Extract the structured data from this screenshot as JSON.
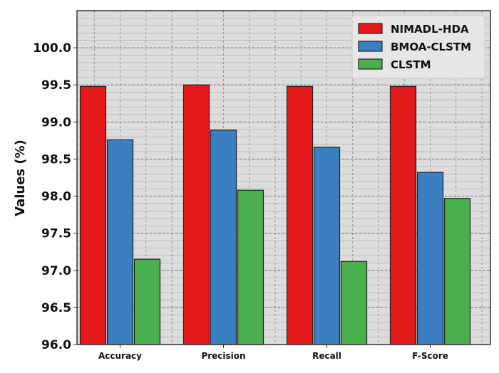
{
  "chart_data": {
    "type": "bar",
    "title": "",
    "xlabel": "",
    "ylabel": "Values (%)",
    "categories": [
      "Accuracy",
      "Precision",
      "Recall",
      "F-Score"
    ],
    "series": [
      {
        "name": "NIMADL-HDA",
        "color": "#e3191c",
        "values": [
          99.48,
          99.5,
          99.48,
          99.48
        ]
      },
      {
        "name": "BMOA-CLSTM",
        "color": "#3a7fbf",
        "values": [
          98.76,
          98.89,
          98.66,
          98.32
        ]
      },
      {
        "name": "CLSTM",
        "color": "#4caf4f",
        "values": [
          97.15,
          98.08,
          97.12,
          97.97
        ]
      }
    ],
    "ylim": [
      96.0,
      100.5
    ],
    "yticks": [
      "96.0",
      "96.5",
      "97.0",
      "97.5",
      "98.0",
      "98.5",
      "99.0",
      "99.5",
      "100.0"
    ],
    "grid": true,
    "legend_position": "top-right"
  }
}
